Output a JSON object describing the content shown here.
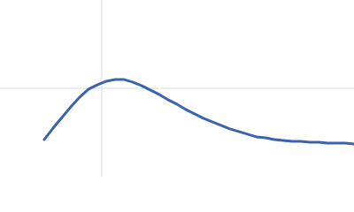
{
  "chart_data": {
    "type": "line",
    "x": [
      50,
      60,
      70,
      80,
      90,
      100,
      110,
      120,
      130,
      140,
      150,
      160,
      170,
      180,
      190,
      200,
      210,
      220,
      230,
      240,
      250,
      260,
      270,
      280,
      290,
      300,
      310,
      320,
      330,
      340,
      350,
      360,
      370,
      380,
      390,
      400
    ],
    "values": [
      42,
      55,
      67,
      79,
      90,
      99,
      104,
      108,
      110,
      110,
      107,
      103,
      98,
      93,
      87,
      82,
      76,
      71,
      66,
      62,
      58,
      54,
      51,
      48,
      45,
      44,
      42,
      41,
      40,
      40,
      39,
      39,
      38,
      38,
      38,
      37
    ],
    "color": "#3a64ad",
    "xlim": [
      0,
      400
    ],
    "ylim": [
      0,
      200
    ],
    "grid_x": [
      115
    ],
    "grid_y": [
      100
    ],
    "grid_color": "#d5dbe6"
  }
}
